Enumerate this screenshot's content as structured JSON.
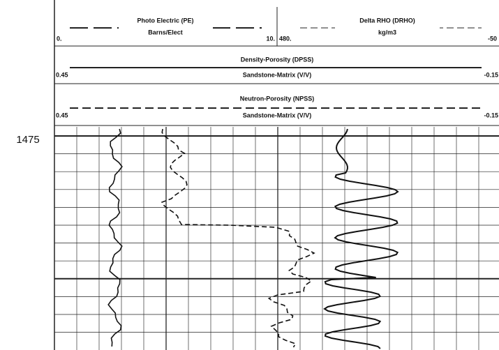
{
  "depth_label": "1475",
  "tracks": [
    {
      "title": "Photo Electric (PE)",
      "unit": "Barns/Elect",
      "left": "0.",
      "right": "10."
    },
    {
      "title": "Delta RHO (DRHO)",
      "unit": "kg/m3",
      "left": "480.",
      "right": "-50"
    }
  ],
  "curves": [
    {
      "title": "Density-Porosity (DPSS)",
      "unit": "Sandstone-Matrix (V/V)",
      "left": "0.45",
      "right": "-0.15"
    },
    {
      "title": "Neutron-Porosity (NPSS)",
      "unit": "Sandstone-Matrix (V/V)",
      "left": "0.45",
      "right": "-0.15"
    }
  ]
}
